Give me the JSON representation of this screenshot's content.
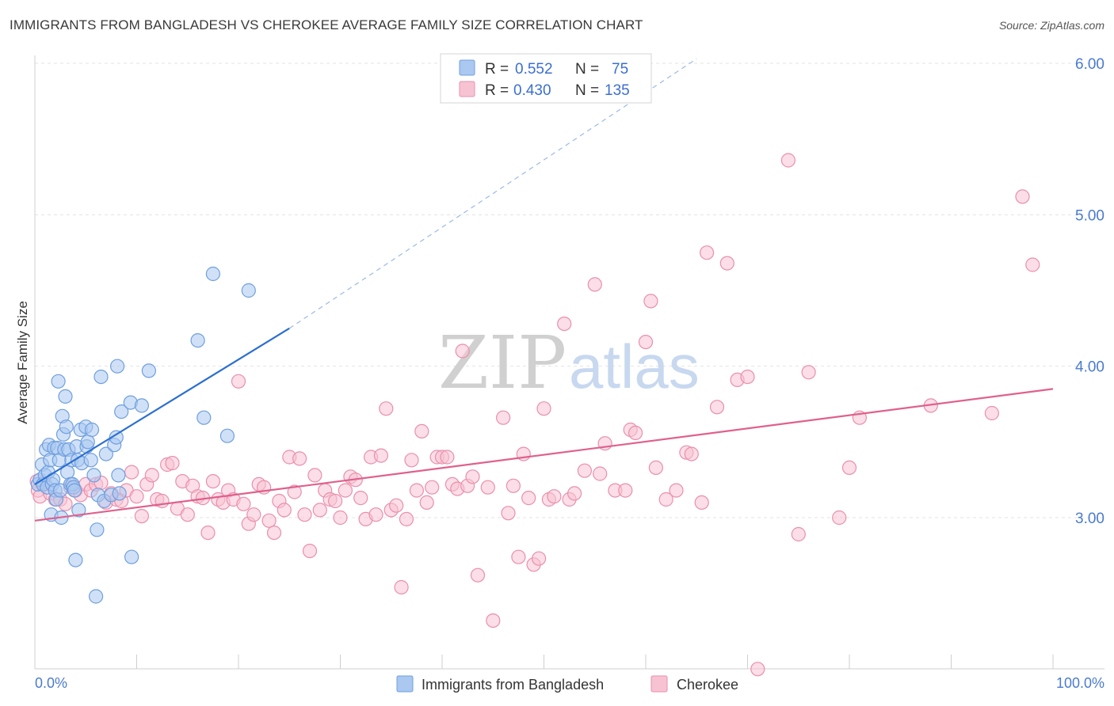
{
  "title": "IMMIGRANTS FROM BANGLADESH VS CHEROKEE AVERAGE FAMILY SIZE CORRELATION CHART",
  "source": "Source: ZipAtlas.com",
  "watermark": {
    "zip": "ZIP",
    "atlas": "atlas"
  },
  "legend": {
    "rows": [
      {
        "r_label": "R =",
        "r_value": "0.552",
        "n_label": "N =",
        "n_value": "75"
      },
      {
        "r_label": "R =",
        "r_value": "0.430",
        "n_label": "N =",
        "n_value": "135"
      }
    ]
  },
  "colors": {
    "blue_fill": "#aac8f0",
    "blue_stroke": "#6f9fe0",
    "blue_line": "#2c6fd0",
    "pink_fill": "#f7c3d3",
    "pink_stroke": "#ea8fac",
    "pink_line": "#e0608c",
    "tick_text": "#4a7bd0"
  },
  "chart_data": {
    "type": "scatter",
    "title": "IMMIGRANTS FROM BANGLADESH VS CHEROKEE AVERAGE FAMILY SIZE CORRELATION CHART",
    "xlabel": "",
    "ylabel": "Average Family Size",
    "xlim": [
      0,
      100
    ],
    "ylim": [
      2.0,
      6.15
    ],
    "x_tick_labels": [
      "0.0%",
      "100.0%"
    ],
    "y_ticks": [
      3.0,
      4.0,
      5.0,
      6.0
    ],
    "y_tick_labels": [
      "3.00",
      "4.00",
      "5.00",
      "6.00"
    ],
    "grid": true,
    "legend_position": "top-center",
    "series": [
      {
        "name": "Immigrants from Bangladesh",
        "color": "#6f9fe0",
        "trend": {
          "x": [
            0,
            25
          ],
          "y": [
            3.22,
            4.25
          ],
          "dashed_extension_to": [
            65,
            6.03
          ]
        },
        "points": [
          [
            0.3,
            3.22
          ],
          [
            0.5,
            3.25
          ],
          [
            0.7,
            3.35
          ],
          [
            0.8,
            3.22
          ],
          [
            1.0,
            3.28
          ],
          [
            1.1,
            3.45
          ],
          [
            1.2,
            3.2
          ],
          [
            1.3,
            3.3
          ],
          [
            1.4,
            3.48
          ],
          [
            1.5,
            3.38
          ],
          [
            1.6,
            3.02
          ],
          [
            1.7,
            3.22
          ],
          [
            1.8,
            3.25
          ],
          [
            1.9,
            3.46
          ],
          [
            2.0,
            3.18
          ],
          [
            2.1,
            3.12
          ],
          [
            2.2,
            3.46
          ],
          [
            2.3,
            3.9
          ],
          [
            2.4,
            3.38
          ],
          [
            2.5,
            3.18
          ],
          [
            2.6,
            3.0
          ],
          [
            2.7,
            3.67
          ],
          [
            2.8,
            3.55
          ],
          [
            2.9,
            3.45
          ],
          [
            3.0,
            3.8
          ],
          [
            3.1,
            3.6
          ],
          [
            3.2,
            3.3
          ],
          [
            3.3,
            3.45
          ],
          [
            3.5,
            3.22
          ],
          [
            3.6,
            3.38
          ],
          [
            3.7,
            3.22
          ],
          [
            3.8,
            3.2
          ],
          [
            3.9,
            3.18
          ],
          [
            4.0,
            2.72
          ],
          [
            4.1,
            3.47
          ],
          [
            4.2,
            3.38
          ],
          [
            4.3,
            3.05
          ],
          [
            4.5,
            3.58
          ],
          [
            4.6,
            3.36
          ],
          [
            5.0,
            3.6
          ],
          [
            5.1,
            3.47
          ],
          [
            5.2,
            3.5
          ],
          [
            5.5,
            3.38
          ],
          [
            5.6,
            3.58
          ],
          [
            5.8,
            3.28
          ],
          [
            6.0,
            2.48
          ],
          [
            6.1,
            2.92
          ],
          [
            6.2,
            3.15
          ],
          [
            6.5,
            3.93
          ],
          [
            6.8,
            3.11
          ],
          [
            7.0,
            3.42
          ],
          [
            7.5,
            3.15
          ],
          [
            7.8,
            3.48
          ],
          [
            8.0,
            3.53
          ],
          [
            8.1,
            4.0
          ],
          [
            8.2,
            3.28
          ],
          [
            8.3,
            3.16
          ],
          [
            8.5,
            3.7
          ],
          [
            9.4,
            3.76
          ],
          [
            9.5,
            2.74
          ],
          [
            10.5,
            3.74
          ],
          [
            11.2,
            3.97
          ],
          [
            16.0,
            4.17
          ],
          [
            16.6,
            3.66
          ],
          [
            17.5,
            4.61
          ],
          [
            18.9,
            3.54
          ],
          [
            21.0,
            4.5
          ]
        ]
      },
      {
        "name": "Cherokee",
        "color": "#ea8fac",
        "trend": {
          "x": [
            0,
            100
          ],
          "y": [
            2.98,
            3.85
          ]
        },
        "points": [
          [
            0.2,
            3.24
          ],
          [
            0.3,
            3.18
          ],
          [
            0.5,
            3.14
          ],
          [
            1.0,
            3.22
          ],
          [
            1.5,
            3.16
          ],
          [
            2.0,
            3.12
          ],
          [
            2.5,
            3.12
          ],
          [
            3.0,
            3.09
          ],
          [
            3.5,
            3.2
          ],
          [
            4.0,
            3.18
          ],
          [
            4.5,
            3.15
          ],
          [
            5.0,
            3.22
          ],
          [
            5.5,
            3.18
          ],
          [
            6.0,
            3.22
          ],
          [
            6.5,
            3.23
          ],
          [
            7.0,
            3.1
          ],
          [
            7.5,
            3.16
          ],
          [
            8.0,
            3.12
          ],
          [
            8.5,
            3.11
          ],
          [
            9.0,
            3.18
          ],
          [
            9.5,
            3.3
          ],
          [
            10.0,
            3.14
          ],
          [
            10.5,
            3.01
          ],
          [
            11.0,
            3.22
          ],
          [
            11.5,
            3.28
          ],
          [
            12.0,
            3.12
          ],
          [
            12.5,
            3.11
          ],
          [
            13.0,
            3.35
          ],
          [
            13.5,
            3.36
          ],
          [
            14.0,
            3.06
          ],
          [
            14.5,
            3.24
          ],
          [
            15.0,
            3.02
          ],
          [
            15.5,
            3.21
          ],
          [
            16.0,
            3.14
          ],
          [
            16.5,
            3.13
          ],
          [
            17.0,
            2.9
          ],
          [
            17.5,
            3.24
          ],
          [
            18.0,
            3.12
          ],
          [
            18.5,
            3.1
          ],
          [
            19.0,
            3.18
          ],
          [
            19.5,
            3.12
          ],
          [
            20.0,
            3.9
          ],
          [
            20.5,
            3.09
          ],
          [
            21.0,
            2.96
          ],
          [
            21.5,
            3.02
          ],
          [
            22.0,
            3.22
          ],
          [
            22.5,
            3.2
          ],
          [
            23.0,
            2.98
          ],
          [
            23.5,
            2.9
          ],
          [
            24.0,
            3.11
          ],
          [
            24.5,
            3.05
          ],
          [
            25.0,
            3.4
          ],
          [
            25.5,
            3.17
          ],
          [
            26.0,
            3.39
          ],
          [
            26.5,
            3.02
          ],
          [
            27.0,
            2.78
          ],
          [
            27.5,
            3.28
          ],
          [
            28.0,
            3.05
          ],
          [
            28.5,
            3.18
          ],
          [
            29.0,
            3.12
          ],
          [
            29.5,
            3.11
          ],
          [
            30.0,
            3.0
          ],
          [
            30.5,
            3.18
          ],
          [
            31.0,
            3.27
          ],
          [
            31.5,
            3.25
          ],
          [
            32.0,
            3.13
          ],
          [
            32.5,
            2.99
          ],
          [
            33.0,
            3.4
          ],
          [
            33.5,
            3.02
          ],
          [
            34.0,
            3.41
          ],
          [
            34.5,
            3.72
          ],
          [
            35.0,
            3.05
          ],
          [
            35.5,
            3.08
          ],
          [
            36.0,
            2.54
          ],
          [
            36.5,
            2.99
          ],
          [
            37.0,
            3.38
          ],
          [
            37.5,
            3.18
          ],
          [
            38.0,
            3.57
          ],
          [
            38.5,
            3.1
          ],
          [
            39.0,
            3.2
          ],
          [
            39.5,
            3.4
          ],
          [
            40.0,
            3.4
          ],
          [
            40.5,
            3.4
          ],
          [
            41.0,
            3.22
          ],
          [
            41.5,
            3.19
          ],
          [
            42.0,
            4.1
          ],
          [
            42.5,
            3.21
          ],
          [
            43.0,
            3.27
          ],
          [
            43.5,
            2.62
          ],
          [
            44.5,
            3.2
          ],
          [
            45.0,
            2.32
          ],
          [
            46.0,
            3.66
          ],
          [
            46.5,
            3.03
          ],
          [
            47.0,
            3.21
          ],
          [
            47.5,
            2.74
          ],
          [
            48.0,
            3.42
          ],
          [
            48.5,
            3.13
          ],
          [
            49.0,
            2.69
          ],
          [
            49.5,
            2.73
          ],
          [
            50.0,
            3.72
          ],
          [
            50.5,
            3.12
          ],
          [
            51.0,
            3.14
          ],
          [
            52.0,
            4.28
          ],
          [
            52.5,
            3.12
          ],
          [
            53.0,
            3.16
          ],
          [
            54.0,
            3.31
          ],
          [
            55.0,
            4.54
          ],
          [
            55.5,
            3.29
          ],
          [
            56.0,
            3.49
          ],
          [
            57.0,
            3.18
          ],
          [
            58.0,
            3.18
          ],
          [
            58.5,
            3.58
          ],
          [
            59.0,
            3.56
          ],
          [
            60.0,
            4.16
          ],
          [
            60.5,
            4.43
          ],
          [
            61.0,
            3.33
          ],
          [
            62.0,
            3.12
          ],
          [
            63.0,
            3.18
          ],
          [
            64.0,
            3.43
          ],
          [
            64.5,
            3.42
          ],
          [
            65.5,
            3.1
          ],
          [
            66.0,
            4.75
          ],
          [
            67.0,
            3.73
          ],
          [
            68.0,
            4.68
          ],
          [
            69.0,
            3.91
          ],
          [
            70.0,
            3.93
          ],
          [
            71.0,
            2.0
          ],
          [
            74.0,
            5.36
          ],
          [
            75.0,
            2.89
          ],
          [
            76.0,
            3.96
          ],
          [
            79.0,
            3.0
          ],
          [
            80.0,
            3.33
          ],
          [
            81.0,
            3.66
          ],
          [
            88.0,
            3.74
          ],
          [
            94.0,
            3.69
          ],
          [
            97.0,
            5.12
          ],
          [
            98.0,
            4.67
          ]
        ]
      }
    ]
  },
  "bottom_legend": [
    "Immigrants from Bangladesh",
    "Cherokee"
  ]
}
